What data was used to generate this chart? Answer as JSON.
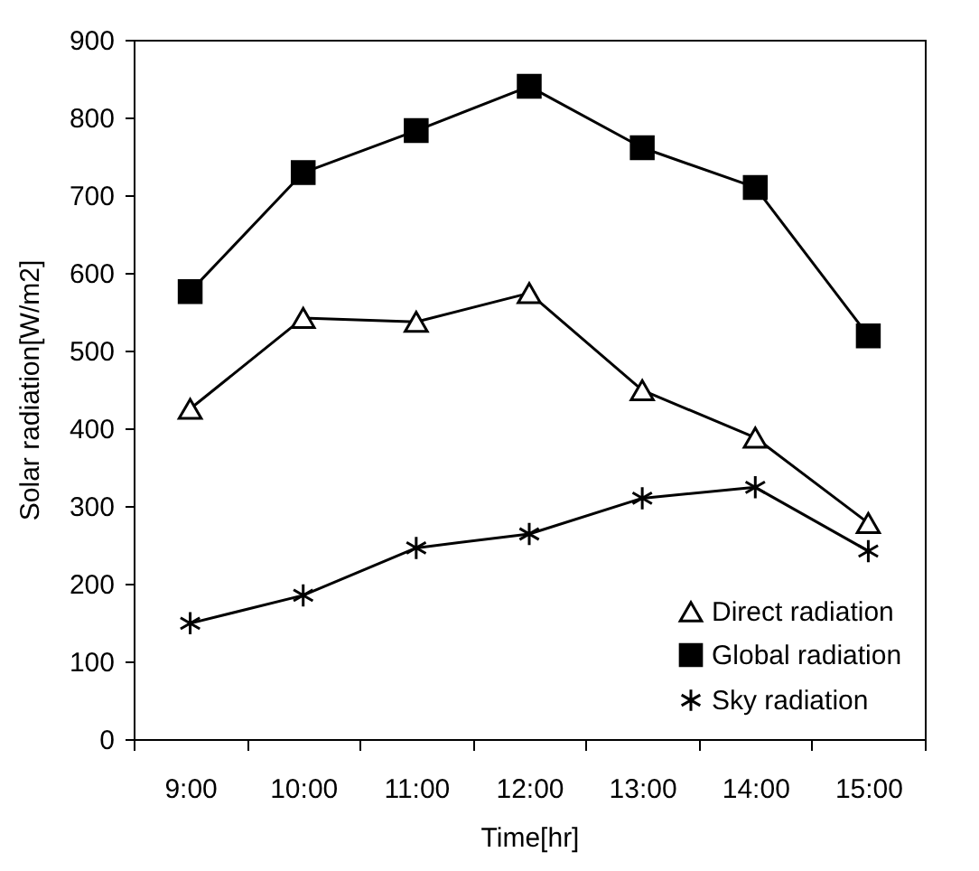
{
  "chart_data": {
    "type": "line",
    "xlabel": "Time[hr]",
    "ylabel": "Solar radiation[W/m2]",
    "categories": [
      "9:00",
      "10:00",
      "11:00",
      "12:00",
      "13:00",
      "14:00",
      "15:00"
    ],
    "series": [
      {
        "name": "Direct radiation",
        "color": "#000000",
        "marker": "triangle",
        "values": [
          425,
          542,
          537,
          574,
          449,
          388,
          278
        ]
      },
      {
        "name": "Global radiation",
        "color": "#000000",
        "marker": "square",
        "values": [
          576,
          729,
          783,
          840,
          761,
          710,
          519
        ]
      },
      {
        "name": "Sky radiation",
        "color": "#000000",
        "marker": "cross",
        "values": [
          149,
          185,
          246,
          264,
          310,
          324,
          242
        ]
      }
    ],
    "ylim": [
      0,
      900
    ],
    "yticks": [
      0,
      100,
      200,
      300,
      400,
      500,
      600,
      700,
      800,
      900
    ],
    "grid": false,
    "legend": "bottom right",
    "line_style": "solid"
  }
}
